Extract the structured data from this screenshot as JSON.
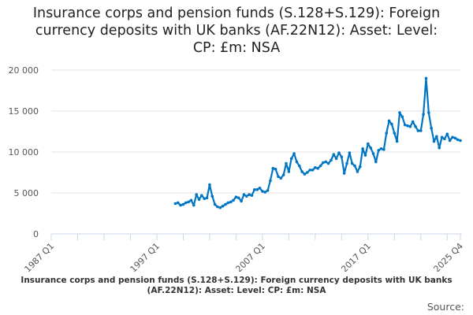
{
  "chart_data": {
    "type": "line",
    "title": "Insurance corps and pension funds (S.128+S.129): Foreign currency deposits with UK banks (AF.22N12): Asset: Level: CP: £m: NSA",
    "title_lines": [
      "Insurance corps and pension funds (S.128+S.129): Foreign",
      "currency deposits with UK banks (AF.22N12): Asset: Level:",
      "CP: £m: NSA"
    ],
    "xlabel": "",
    "ylabel": "",
    "ylim": [
      0,
      20000
    ],
    "y_ticks": [
      {
        "v": 0,
        "label": "0"
      },
      {
        "v": 5000,
        "label": "5 000"
      },
      {
        "v": 10000,
        "label": "10 000"
      },
      {
        "v": 15000,
        "label": "15 000"
      },
      {
        "v": 20000,
        "label": "20 000"
      }
    ],
    "x_range": [
      "1987 Q1",
      "2025 Q4"
    ],
    "x_tick_labels": [
      {
        "q": 0,
        "label": "1987 Q1"
      },
      {
        "q": 40,
        "label": "1997 Q1"
      },
      {
        "q": 80,
        "label": "2007 Q1"
      },
      {
        "q": 120,
        "label": "2017 Q1"
      },
      {
        "q": 155,
        "label": "2025 Q4"
      }
    ],
    "series": [
      {
        "name": "Foreign currency deposits",
        "color": "#0075c4",
        "end_quarter": "2025 Q4",
        "values": [
          3700,
          3800,
          3500,
          3600,
          3800,
          3900,
          4100,
          3500,
          4800,
          4200,
          4700,
          4300,
          4400,
          6000,
          4600,
          3600,
          3300,
          3200,
          3400,
          3600,
          3800,
          3900,
          4100,
          4500,
          4400,
          4000,
          4800,
          4600,
          4800,
          4700,
          5400,
          5400,
          5600,
          5200,
          5100,
          5300,
          6500,
          8000,
          7900,
          7000,
          6800,
          7200,
          8600,
          7600,
          9200,
          9800,
          8800,
          8300,
          7600,
          7300,
          7500,
          7800,
          7800,
          8100,
          8000,
          8300,
          8700,
          8800,
          8600,
          9000,
          9700,
          9200,
          9900,
          9400,
          7400,
          8600,
          9900,
          8600,
          8300,
          7600,
          8200,
          10400,
          9600,
          11000,
          10500,
          9800,
          8800,
          10200,
          10400,
          10300,
          12300,
          13800,
          13400,
          12300,
          11300,
          14800,
          14300,
          13300,
          13200,
          13100,
          13700,
          13100,
          12600,
          12600,
          14600,
          19000,
          14800,
          12900,
          11300,
          11900,
          10500,
          11800,
          11600,
          12200,
          11400,
          11800,
          11700,
          11500,
          11400
        ]
      }
    ]
  },
  "footer": "Insurance corps and pension funds (S.128+S.129): Foreign currency deposits with UK banks (AF.22N12): Asset: Level: CP: £m: NSA",
  "source_label": "Source:"
}
